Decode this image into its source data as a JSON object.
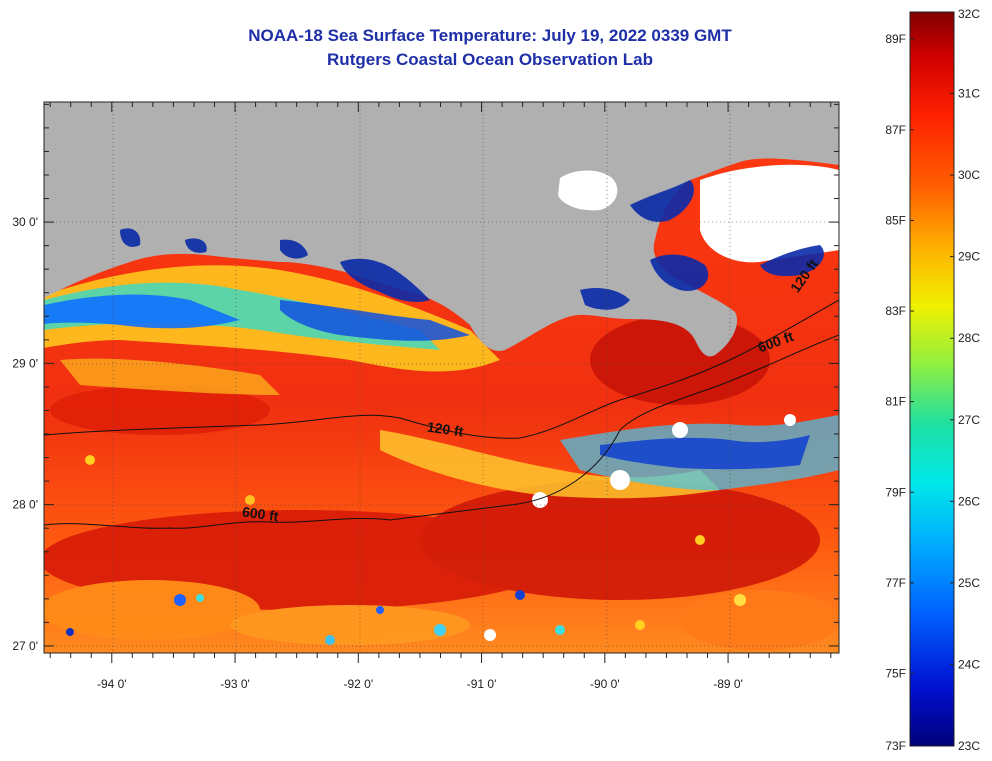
{
  "header": {
    "title": "NOAA-18 Sea Surface Temperature:  July 19, 2022 0339 GMT",
    "subtitle": "Rutgers Coastal Ocean Observation Lab"
  },
  "map": {
    "lon_range": [
      -94.55,
      -88.1
    ],
    "lat_range": [
      26.95,
      30.85
    ],
    "lon_ticks": [
      {
        "value": -94,
        "label": "-94 0'"
      },
      {
        "value": -93,
        "label": "-93 0'"
      },
      {
        "value": -92,
        "label": "-92 0'"
      },
      {
        "value": -91,
        "label": "-91 0'"
      },
      {
        "value": -90,
        "label": "-90 0'"
      },
      {
        "value": -89,
        "label": "-89 0'"
      }
    ],
    "lat_ticks": [
      {
        "value": 30,
        "label": "30 0'"
      },
      {
        "value": 29,
        "label": "29 0'"
      },
      {
        "value": 28,
        "label": "28 0'"
      },
      {
        "value": 27,
        "label": "27 0'"
      }
    ],
    "contour_labels": [
      {
        "text": "120 ft",
        "lon": -91.3,
        "lat": 28.5
      },
      {
        "text": "600 ft",
        "lon": -92.8,
        "lat": 27.9
      },
      {
        "text": "600 ft",
        "lon": -88.6,
        "lat": 29.12
      },
      {
        "text": "120 ft",
        "lon": -88.35,
        "lat": 29.6
      }
    ],
    "colors": {
      "land": "#b0b0b0",
      "cloud": "#ffffff"
    }
  },
  "colorbar": {
    "fahrenheit_labels": [
      "89F",
      "87F",
      "85F",
      "83F",
      "81F",
      "79F",
      "77F",
      "75F",
      "73F"
    ],
    "celsius_labels": [
      "32C",
      "31C",
      "30C",
      "29C",
      "28C",
      "27C",
      "26C",
      "25C",
      "24C",
      "23C"
    ],
    "range_c": [
      23,
      32
    ]
  }
}
